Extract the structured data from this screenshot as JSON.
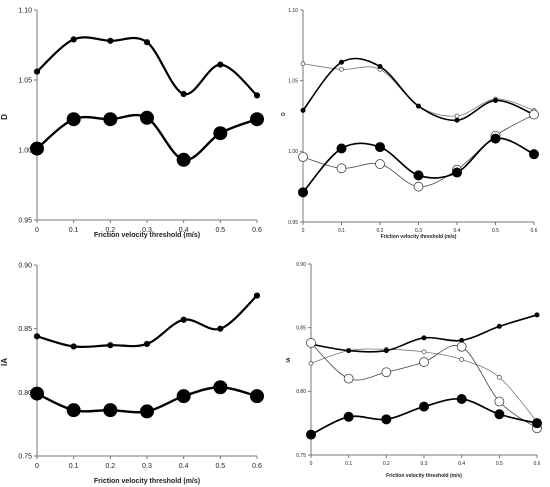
{
  "chart_data": [
    {
      "type": "line",
      "ylabel": "D",
      "xlabel": "Friction velocity threshold (m/s)",
      "x": [
        0,
        0.1,
        0.2,
        0.3,
        0.4,
        0.5,
        0.6
      ],
      "xticks": [
        "0",
        "0.1",
        "0.2",
        "0.3",
        "0.4",
        "0.5",
        "0.6"
      ],
      "ylim": [
        0.95,
        1.1
      ],
      "yticks": [
        "0.95",
        "1.00",
        "1.05",
        "1.10"
      ],
      "grid": false,
      "series": [
        {
          "values": [
            1.056,
            1.079,
            1.078,
            1.077,
            1.04,
            1.061,
            1.039
          ],
          "marker": "small-filled"
        },
        {
          "values": [
            1.001,
            1.022,
            1.022,
            1.023,
            0.993,
            1.012,
            1.022
          ],
          "marker": "large-filled"
        }
      ]
    },
    {
      "type": "line",
      "ylabel": "D",
      "xlabel": "Friction velocity threshold (m/s)",
      "x": [
        0,
        0.1,
        0.2,
        0.3,
        0.4,
        0.5,
        0.6
      ],
      "xticks": [
        "0",
        "0.1",
        "0.2",
        "0.3",
        "0.4",
        "0.5",
        "0.6"
      ],
      "ylim": [
        0.95,
        1.1
      ],
      "yticks": [
        "0.95",
        "1.00",
        "1.05",
        "1.10"
      ],
      "grid": false,
      "series": [
        {
          "values": [
            1.062,
            1.058,
            1.058,
            1.032,
            1.025,
            1.037,
            1.029
          ],
          "marker": "small-open"
        },
        {
          "values": [
            1.029,
            1.063,
            1.06,
            1.032,
            1.022,
            1.036,
            1.026
          ],
          "marker": "small-filled"
        },
        {
          "values": [
            0.996,
            0.988,
            0.991,
            0.975,
            0.987,
            1.011,
            1.026
          ],
          "marker": "large-open"
        },
        {
          "values": [
            0.971,
            1.002,
            1.003,
            0.983,
            0.985,
            1.009,
            0.998
          ],
          "marker": "large-filled"
        }
      ]
    },
    {
      "type": "line",
      "ylabel": "IA",
      "xlabel": "Friction velocity threshold (m/s)",
      "x": [
        0,
        0.1,
        0.2,
        0.3,
        0.4,
        0.5,
        0.6
      ],
      "xticks": [
        "0",
        "0.1",
        "0.2",
        "0.3",
        "0.4",
        "0.5",
        "0.6"
      ],
      "ylim": [
        0.75,
        0.9
      ],
      "yticks": [
        "0.75",
        "0.80",
        "0.85",
        "0.90"
      ],
      "grid": false,
      "series": [
        {
          "values": [
            0.844,
            0.836,
            0.837,
            0.838,
            0.857,
            0.85,
            0.876
          ],
          "marker": "small-filled"
        },
        {
          "values": [
            0.799,
            0.786,
            0.786,
            0.785,
            0.797,
            0.804,
            0.797
          ],
          "marker": "large-filled"
        }
      ]
    },
    {
      "type": "line",
      "ylabel": "IA",
      "xlabel": "Friction velocity threshold (m/s)",
      "x": [
        0,
        0.1,
        0.2,
        0.3,
        0.4,
        0.5,
        0.6
      ],
      "xticks": [
        "0",
        "0.1",
        "0.2",
        "0.3",
        "0.4",
        "0.5",
        "0.6"
      ],
      "ylim": [
        0.75,
        0.9
      ],
      "yticks": [
        "0.75",
        "0.80",
        "0.85",
        "0.90"
      ],
      "grid": false,
      "series": [
        {
          "values": [
            0.822,
            0.832,
            0.833,
            0.831,
            0.825,
            0.811,
            0.776
          ],
          "marker": "small-open"
        },
        {
          "values": [
            0.837,
            0.832,
            0.832,
            0.842,
            0.84,
            0.851,
            0.86
          ],
          "marker": "small-filled"
        },
        {
          "values": [
            0.838,
            0.81,
            0.815,
            0.823,
            0.835,
            0.792,
            0.771
          ],
          "marker": "large-open"
        },
        {
          "values": [
            0.766,
            0.78,
            0.778,
            0.788,
            0.794,
            0.782,
            0.775
          ],
          "marker": "large-filled"
        }
      ]
    }
  ]
}
